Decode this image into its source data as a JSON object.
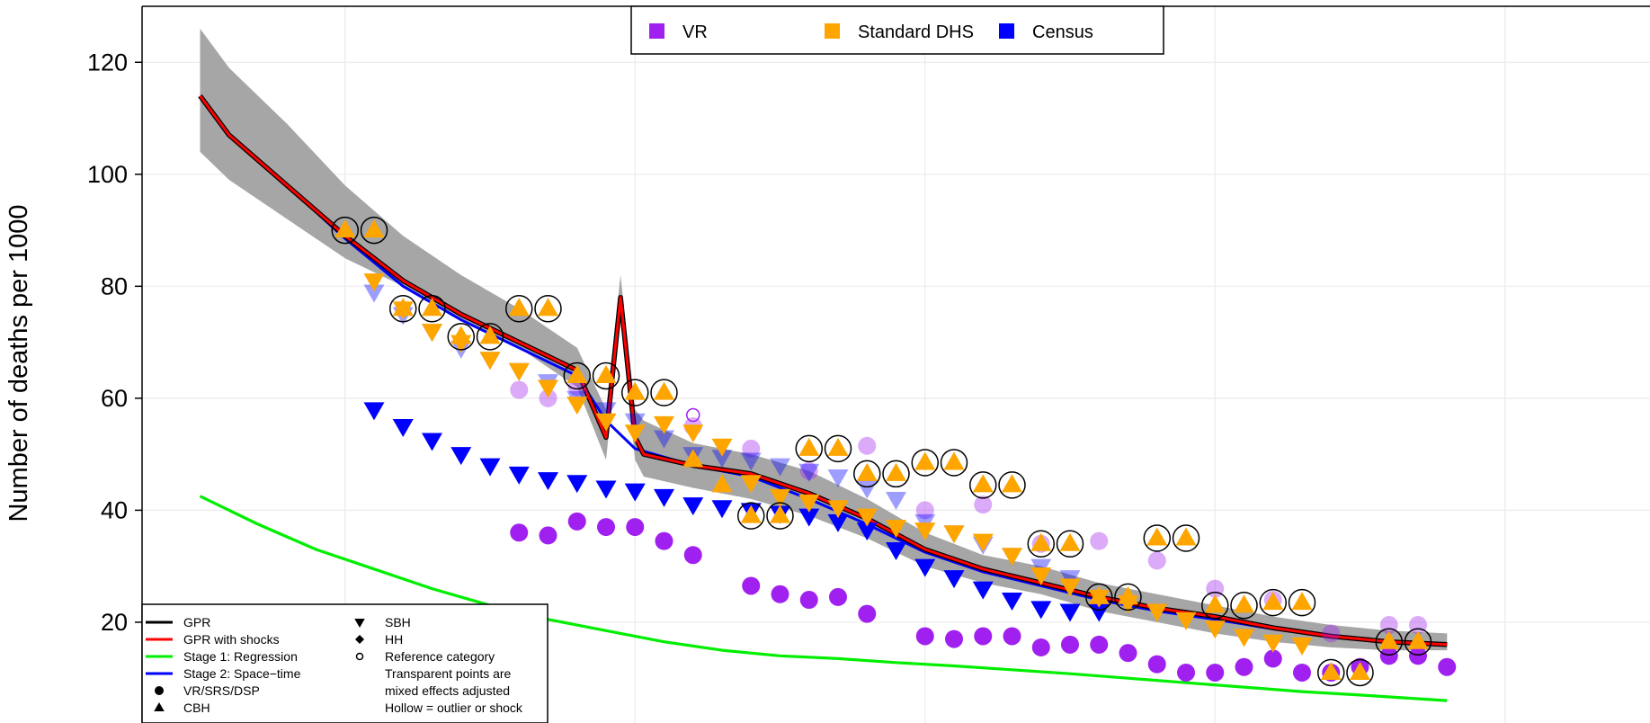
{
  "chart_data": {
    "type": "scatter",
    "title": "",
    "xlabel": "",
    "ylabel": "Number of deaths per 1000",
    "xlim": [
      1968,
      2020
    ],
    "ylim": [
      2,
      130
    ],
    "yticks": [
      20,
      40,
      60,
      80,
      100,
      120
    ],
    "xgrid": [
      1975,
      1985,
      1995,
      2005,
      2015
    ],
    "grid": true,
    "legend_source": {
      "placement": "top-center",
      "items": [
        {
          "label": "VR",
          "color": "#A020F0"
        },
        {
          "label": "Standard DHS",
          "color": "#FFA500"
        },
        {
          "label": "Census",
          "color": "#0000FF"
        }
      ]
    },
    "legend_key": {
      "placement": "bottom-left",
      "lines": [
        {
          "label": "GPR",
          "color": "#000000"
        },
        {
          "label": "GPR with shocks",
          "color": "#FF0000"
        },
        {
          "label": "Stage 1: Regression",
          "color": "#00EE00"
        },
        {
          "label": "Stage 2: Space−time",
          "color": "#0000FF"
        }
      ],
      "shapes": [
        {
          "label": "VR/SRS/DSP",
          "shape": "circle"
        },
        {
          "label": "CBH",
          "shape": "triangle-up"
        },
        {
          "label": "SBH",
          "shape": "triangle-down"
        },
        {
          "label": "HH",
          "shape": "diamond"
        },
        {
          "label": "Reference category",
          "shape": "hollow-circle"
        }
      ],
      "notes": [
        "Transparent points are",
        "mixed effects adjusted",
        "Hollow = outlier or shock"
      ]
    },
    "uncertainty_band": {
      "color": "#A6A6A6",
      "x": [
        1970,
        1971,
        1973,
        1975,
        1977,
        1979,
        1981,
        1983,
        1984,
        1984.5,
        1985,
        1985.3,
        1987,
        1989,
        1991,
        1993,
        1995,
        1997,
        1999,
        2001,
        2003,
        2005,
        2007,
        2009,
        2011,
        2013
      ],
      "upper": [
        126,
        119,
        109,
        98,
        89,
        82,
        76,
        69,
        58,
        82,
        58,
        56,
        52,
        50,
        47,
        42,
        36,
        32,
        30,
        27,
        25,
        23,
        21,
        19.5,
        18.5,
        18
      ],
      "lower": [
        104,
        99,
        92,
        85,
        80,
        74,
        69,
        62,
        49,
        74,
        49,
        46,
        44,
        42,
        39,
        35,
        30,
        27,
        25,
        22,
        20,
        18,
        16.5,
        15.5,
        15,
        15
      ]
    },
    "series": [
      {
        "name": "GPR",
        "kind": "line",
        "color": "#000000",
        "x": [
          1970,
          1971,
          1973,
          1975,
          1977,
          1979,
          1981,
          1983,
          1984,
          1984.5,
          1985,
          1985.3,
          1987,
          1989,
          1991,
          1993,
          1995,
          1997,
          1999,
          2001,
          2003,
          2005,
          2007,
          2009,
          2011,
          2013
        ],
        "y": [
          114,
          107,
          98,
          89,
          81,
          75,
          70,
          65,
          53,
          78,
          53,
          50,
          48,
          46.5,
          43,
          38.5,
          33,
          29.5,
          27,
          24.5,
          22.5,
          21,
          19,
          17.5,
          16.5,
          16
        ]
      },
      {
        "name": "GPR with shocks",
        "kind": "line",
        "color": "#FF0000",
        "x": [
          1970,
          1971,
          1973,
          1975,
          1977,
          1979,
          1981,
          1983,
          1984,
          1984.5,
          1985,
          1985.3,
          1987,
          1989,
          1991,
          1993,
          1995,
          1997,
          1999,
          2001,
          2003,
          2005,
          2007,
          2009,
          2011,
          2013
        ],
        "y": [
          114,
          107,
          98,
          89,
          81,
          75,
          70,
          65,
          53,
          78,
          53,
          50,
          48,
          46.5,
          43,
          38.5,
          33,
          29.5,
          27,
          24.5,
          22.5,
          21,
          19,
          17.5,
          16.5,
          16
        ]
      },
      {
        "name": "Stage 1: Regression",
        "kind": "line",
        "color": "#00EE00",
        "x": [
          1970,
          1972,
          1974,
          1976,
          1978,
          1980,
          1982,
          1984,
          1986,
          1988,
          1990,
          1992,
          1994,
          1996,
          1998,
          2000,
          2002,
          2004,
          2006,
          2008,
          2010,
          2013
        ],
        "y": [
          42.5,
          37.5,
          33,
          29.5,
          26,
          23,
          20.5,
          18.5,
          16.5,
          15,
          14,
          13.5,
          12.8,
          12.2,
          11.5,
          10.8,
          10,
          9.2,
          8.4,
          7.6,
          7,
          6
        ]
      },
      {
        "name": "Stage 2: Space−time",
        "kind": "line",
        "color": "#0000FF",
        "x": [
          1970,
          1971,
          1973,
          1975,
          1977,
          1979,
          1981,
          1983,
          1984,
          1985,
          1987,
          1989,
          1991,
          1993,
          1995,
          1997,
          1999,
          2001,
          2003,
          2005,
          2007,
          2009,
          2011,
          2013
        ],
        "y": [
          114,
          107,
          98,
          88.5,
          80,
          74,
          69,
          64,
          56,
          51,
          48,
          46,
          42,
          37.5,
          32.5,
          29,
          26.5,
          24,
          22,
          20.5,
          18.8,
          17.5,
          16.5,
          16
        ]
      },
      {
        "name": "VR",
        "kind": "points",
        "shape": "circle",
        "color": "#A020F0",
        "x": [
          1981,
          1982,
          1983,
          1984,
          1985,
          1986,
          1987,
          1989,
          1990,
          1991,
          1992,
          1993,
          1995,
          1996,
          1997,
          1998,
          1999,
          2000,
          2001,
          2002,
          2003,
          2004,
          2005,
          2006,
          2007,
          2008,
          2009,
          2010,
          2011,
          2012,
          2013
        ],
        "y": [
          36,
          35.5,
          38,
          37,
          37,
          34.5,
          32,
          26.5,
          25,
          24,
          24.5,
          21.5,
          17.5,
          17,
          17.5,
          17.5,
          15.5,
          16,
          16,
          14.5,
          12.5,
          11,
          11,
          12,
          13.5,
          11,
          11,
          12,
          14,
          14,
          12
        ]
      },
      {
        "name": "VR adjusted",
        "kind": "points",
        "shape": "circle",
        "transparent": true,
        "color": "#A020F0",
        "x": [
          1981,
          1982,
          1983,
          1987,
          1989,
          1991,
          1993,
          1995,
          1997,
          1999,
          2001,
          2003,
          2005,
          2007,
          2009,
          2011,
          2012
        ],
        "y": [
          61.5,
          60,
          62,
          55,
          51,
          47,
          51.5,
          40,
          41,
          34,
          34.5,
          31,
          26,
          24,
          18,
          19.5,
          19.5
        ]
      },
      {
        "name": "Census",
        "kind": "points",
        "shape": "triangle-down",
        "color": "#0000FF",
        "x": [
          1976,
          1977,
          1978,
          1979,
          1980,
          1981,
          1982,
          1983,
          1984,
          1985,
          1986,
          1987,
          1988,
          1989,
          1990,
          1991,
          1992,
          1993,
          1994,
          1995,
          1996,
          1997,
          1998,
          1999,
          2000,
          2001
        ],
        "y": [
          58,
          55,
          52.5,
          50,
          48,
          46.5,
          45.5,
          45,
          44,
          43.5,
          42.5,
          41,
          40.5,
          40,
          39.5,
          39,
          38,
          36.5,
          33,
          30,
          28,
          26,
          24,
          22.5,
          22,
          22
        ]
      },
      {
        "name": "Census adjusted",
        "kind": "points",
        "shape": "triangle-down",
        "transparent": true,
        "color": "#0000FF",
        "x": [
          1976,
          1977,
          1978,
          1979,
          1980,
          1981,
          1982,
          1983,
          1984,
          1985,
          1986,
          1987,
          1988,
          1989,
          1990,
          1991,
          1992,
          1993,
          1994,
          1995,
          1996,
          1997,
          1998,
          1999,
          2000
        ],
        "y": [
          79,
          75,
          72,
          69,
          67,
          65,
          63,
          60,
          58,
          56,
          53,
          50,
          49.5,
          49,
          48,
          47,
          46,
          44,
          42,
          38,
          36,
          34,
          32,
          30,
          28
        ]
      },
      {
        "name": "Standard DHS CBH",
        "kind": "points",
        "shape": "triangle-up",
        "color": "#FFA500",
        "x": [
          1975,
          1976,
          1977,
          1978,
          1979,
          1980,
          1981,
          1982,
          1983,
          1984,
          1985,
          1986,
          1987,
          1988,
          1989,
          1990,
          1991,
          1992,
          1993,
          1994,
          1995,
          1996,
          1997,
          1998,
          1999,
          2000,
          2001,
          2002,
          2003,
          2004,
          2005,
          2006,
          2007,
          2008,
          2009,
          2010,
          2011,
          2012
        ],
        "y": [
          90,
          90,
          76,
          76,
          71,
          71,
          76,
          76,
          64,
          64,
          61,
          61,
          49,
          44.5,
          39,
          39,
          51,
          51,
          46.5,
          46.5,
          48.5,
          48.5,
          44.5,
          44.5,
          34,
          34,
          24.5,
          24.5,
          35,
          35,
          23,
          23,
          23.5,
          23.5,
          11,
          11,
          16.5,
          16.5
        ]
      },
      {
        "name": "Standard DHS SBH",
        "kind": "points",
        "shape": "triangle-down",
        "color": "#FFA500",
        "x": [
          1976,
          1977,
          1978,
          1979,
          1980,
          1981,
          1982,
          1983,
          1984,
          1985,
          1986,
          1987,
          1988,
          1989,
          1990,
          1991,
          1992,
          1993,
          1994,
          1995,
          1996,
          1997,
          1998,
          1999,
          2000,
          2001,
          2002,
          2003,
          2004,
          2005,
          2006,
          2007,
          2008
        ],
        "y": [
          81,
          76,
          72,
          70,
          67,
          65,
          62,
          59,
          56,
          54,
          55.5,
          54,
          51.5,
          45,
          42.5,
          41.5,
          40.5,
          39,
          37,
          36.5,
          36,
          34.5,
          32,
          28.5,
          26.5,
          24.5,
          23.5,
          22,
          20.5,
          19,
          17.5,
          16.5,
          16
        ]
      }
    ],
    "hollow_outlier_markers": {
      "color": "#000000",
      "x": [
        1975,
        1976,
        1977,
        1978,
        1979,
        1980,
        1981,
        1982,
        1983,
        1984,
        1985,
        1986,
        1989,
        1990,
        1991,
        1992,
        1993,
        1994,
        1995,
        1996,
        1997,
        1998,
        1999,
        2000,
        2001,
        2002,
        2003,
        2004,
        2005,
        2006,
        2007,
        2008,
        2009,
        2010,
        2011,
        2012
      ],
      "y": [
        90,
        90,
        76,
        76,
        71,
        71,
        76,
        76,
        64,
        64,
        61,
        61,
        39,
        39,
        51,
        51,
        46.5,
        46.5,
        48.5,
        48.5,
        44.5,
        44.5,
        34,
        34,
        24.5,
        24.5,
        35,
        35,
        23,
        23,
        23.5,
        23.5,
        11,
        11,
        16.5,
        16.5
      ]
    },
    "hollow_reference_point": {
      "x": 1987,
      "y": 57,
      "color": "#A020F0"
    }
  }
}
